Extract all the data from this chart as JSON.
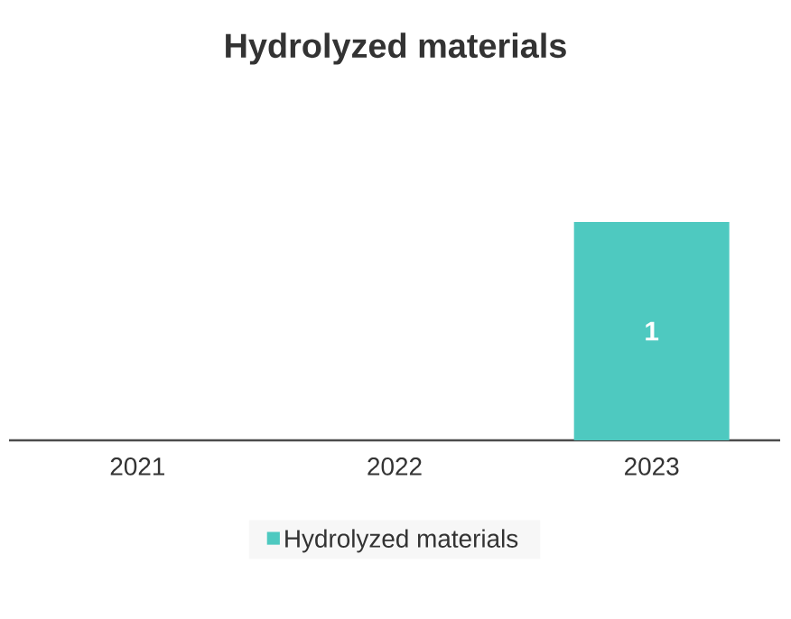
{
  "chart_data": {
    "type": "bar",
    "title": "Hydrolyzed materials",
    "categories": [
      "2021",
      "2022",
      "2023"
    ],
    "series": [
      {
        "name": "Hydrolyzed materials",
        "color": "#4ec9c0",
        "values": [
          null,
          null,
          1
        ],
        "value_labels": [
          null,
          null,
          "1"
        ]
      }
    ],
    "legend": "bottom"
  }
}
